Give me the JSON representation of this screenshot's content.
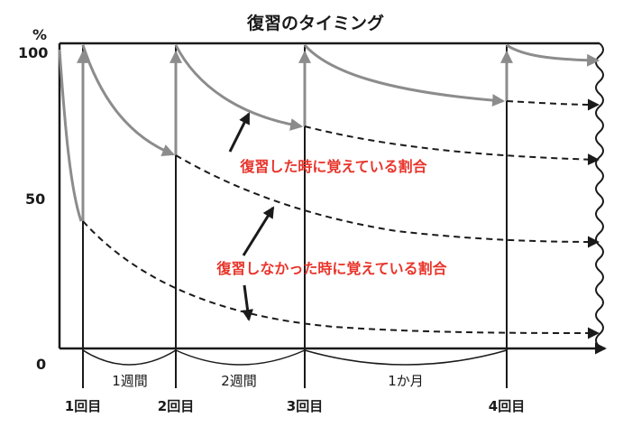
{
  "diagram": {
    "title": "復習のタイミング",
    "y_unit": "%",
    "y_ticks": [
      "100",
      "50",
      "0"
    ],
    "intervals": [
      "1週間",
      "2週間",
      "1か月"
    ],
    "sessions": [
      "1回目",
      "2回目",
      "3回目",
      "4回目"
    ],
    "annotation_reviewed": "復習した時に覚えている割合",
    "annotation_not_reviewed": "復習しなかった時に覚えている割合"
  },
  "colors": {
    "reviewed_curve": "#8c8c8c",
    "forgetting_curve": "#1a1a1a",
    "annotation_text": "#e8352b",
    "axis": "#1a1a1a"
  }
}
